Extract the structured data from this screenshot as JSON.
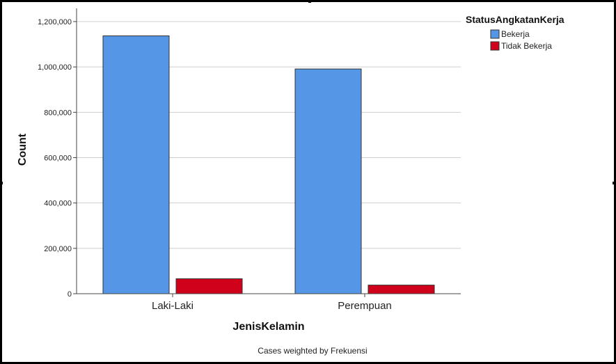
{
  "chart_data": {
    "type": "bar",
    "categories": [
      "Laki-Laki",
      "Perempuan"
    ],
    "series": [
      {
        "name": "Bekerja",
        "values": [
          1137000,
          991000
        ],
        "color": "#5596E6"
      },
      {
        "name": "Tidak Bekerja",
        "values": [
          66000,
          38000
        ],
        "color": "#D0021B"
      }
    ],
    "xlabel": "JenisKelamin",
    "ylabel": "Count",
    "ylim": [
      0,
      1200000
    ],
    "yticks": [
      0,
      200000,
      400000,
      600000,
      800000,
      1000000,
      1200000
    ],
    "ytick_labels": [
      "0",
      "200,000",
      "400,000",
      "600,000",
      "800,000",
      "1,000,000",
      "1,200,000"
    ],
    "legend_title": "StatusAngkatanKerja",
    "legend_position": "top-right",
    "grid": true,
    "footnote": "Cases weighted by Frekuensi"
  }
}
